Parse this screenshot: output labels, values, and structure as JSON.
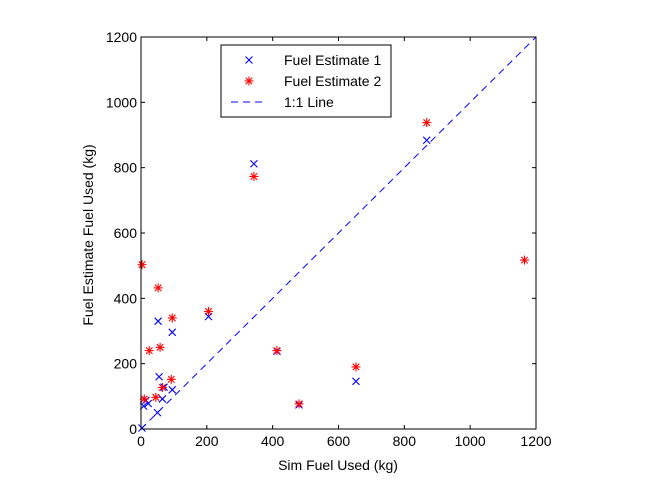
{
  "chart_data": {
    "type": "scatter",
    "title": "",
    "xlabel": "Sim Fuel Used (kg)",
    "ylabel": "Fuel Estimate Fuel Used (kg)",
    "xlim": [
      0,
      1200
    ],
    "ylim": [
      0,
      1200
    ],
    "xticks": [
      0,
      200,
      400,
      600,
      800,
      1000,
      1200
    ],
    "yticks": [
      0,
      200,
      400,
      600,
      800,
      1000,
      1200
    ],
    "xtick_labels": [
      "0",
      "200",
      "400",
      "600",
      "800",
      "1000",
      "1200"
    ],
    "ytick_labels": [
      "0",
      "200",
      "400",
      "600",
      "800",
      "1000",
      "1200"
    ],
    "grid": false,
    "legend_position": "top-center",
    "series": [
      {
        "name": "Fuel Estimate 1",
        "marker": "x",
        "color": "#0000ff",
        "points": [
          [
            3,
            3
          ],
          [
            8,
            70
          ],
          [
            15,
            88
          ],
          [
            22,
            78
          ],
          [
            50,
            50
          ],
          [
            52,
            330
          ],
          [
            55,
            160
          ],
          [
            65,
            92
          ],
          [
            70,
            128
          ],
          [
            95,
            120
          ],
          [
            95,
            296
          ],
          [
            205,
            344
          ],
          [
            343,
            812
          ],
          [
            413,
            238
          ],
          [
            480,
            74
          ],
          [
            653,
            146
          ],
          [
            868,
            884
          ]
        ]
      },
      {
        "name": "Fuel Estimate 2",
        "marker": "asterisk",
        "color": "#ff0000",
        "points": [
          [
            3,
            503
          ],
          [
            10,
            92
          ],
          [
            25,
            240
          ],
          [
            45,
            97
          ],
          [
            52,
            432
          ],
          [
            58,
            250
          ],
          [
            65,
            127
          ],
          [
            92,
            152
          ],
          [
            95,
            340
          ],
          [
            205,
            360
          ],
          [
            343,
            773
          ],
          [
            413,
            240
          ],
          [
            480,
            77
          ],
          [
            653,
            190
          ],
          [
            868,
            938
          ],
          [
            1165,
            517
          ]
        ]
      },
      {
        "name": "1:1 Line",
        "marker": "none",
        "line": "dashed",
        "color": "#0000ff",
        "points": [
          [
            0,
            0
          ],
          [
            1200,
            1200
          ]
        ]
      }
    ]
  }
}
